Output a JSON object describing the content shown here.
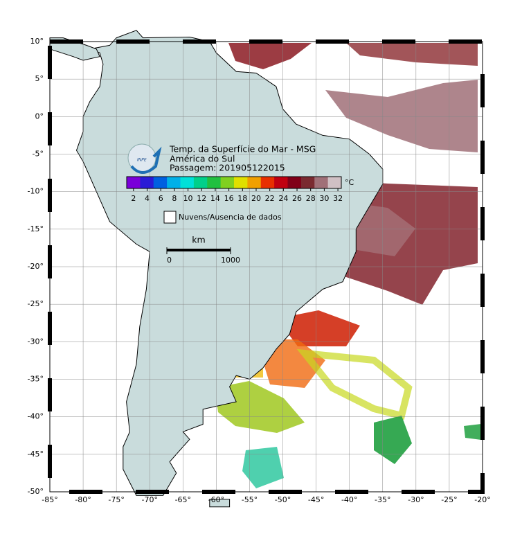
{
  "header": {
    "logo": "INPE",
    "lines": [
      "Temp. da Superfície do Mar - MSG",
      "América do Sul",
      "Passagem: 201905122015"
    ]
  },
  "colorbar": {
    "unit": "°C",
    "range": [
      1,
      32.5
    ],
    "ticks": [
      2,
      4,
      6,
      8,
      10,
      12,
      14,
      16,
      18,
      20,
      22,
      24,
      26,
      28,
      30,
      32
    ],
    "colors": [
      "#7a00d9",
      "#2a1bd6",
      "#0060e0",
      "#00b0e8",
      "#00e0d8",
      "#00d08a",
      "#20c040",
      "#80d020",
      "#e0e000",
      "#f0a000",
      "#e83000",
      "#c00010",
      "#800018",
      "#7a2a30",
      "#a07078",
      "#d0c0c4"
    ]
  },
  "legend": {
    "label": "Nuvens/Ausencia de dados"
  },
  "scale_bar": {
    "unit": "km",
    "ticks": [
      0,
      1000
    ]
  },
  "map": {
    "lon_range": [
      -85,
      -20
    ],
    "lat_range": [
      -50,
      10
    ],
    "lon_ticks": [
      {
        "value": -85,
        "label": "-85°"
      },
      {
        "value": -80,
        "label": "-80°"
      },
      {
        "value": -75,
        "label": "-75°"
      },
      {
        "value": -70,
        "label": "-70°"
      },
      {
        "value": -65,
        "label": "-65°"
      },
      {
        "value": -60,
        "label": "-60°"
      },
      {
        "value": -55,
        "label": "-55°"
      },
      {
        "value": -50,
        "label": "-50°"
      },
      {
        "value": -45,
        "label": "-45°"
      },
      {
        "value": -40,
        "label": "-40°"
      },
      {
        "value": -35,
        "label": "-35°"
      },
      {
        "value": -30,
        "label": "-30°"
      },
      {
        "value": -25,
        "label": "-25°"
      },
      {
        "value": -20,
        "label": "-20°"
      }
    ],
    "lat_ticks": [
      {
        "value": 10,
        "label": "10°"
      },
      {
        "value": 5,
        "label": "5°"
      },
      {
        "value": 0,
        "label": "0°"
      },
      {
        "value": -5,
        "label": "-5°"
      },
      {
        "value": -10,
        "label": "-10°"
      },
      {
        "value": -15,
        "label": "-15°"
      },
      {
        "value": -20,
        "label": "-20°"
      },
      {
        "value": -25,
        "label": "-25°"
      },
      {
        "value": -30,
        "label": "-30°"
      },
      {
        "value": -35,
        "label": "-35°"
      },
      {
        "value": -40,
        "label": "-40°"
      },
      {
        "value": -45,
        "label": "-45°"
      },
      {
        "value": -50,
        "label": "-50°"
      }
    ]
  }
}
